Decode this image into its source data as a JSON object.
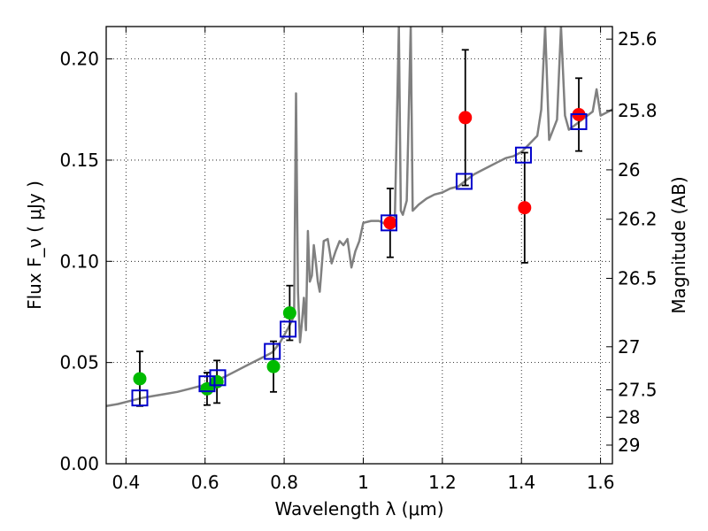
{
  "chart_data": {
    "type": "scatter",
    "xlabel": "Wavelength  λ (μm)",
    "ylabel": "Flux  F_ν  ( μJy )",
    "y2label": "Magnitude (AB)",
    "xlim": [
      0.35,
      1.63
    ],
    "ylim": [
      0.0,
      0.216
    ],
    "grid": true,
    "x_ticks": [
      {
        "value": 0.4,
        "label": "0.4"
      },
      {
        "value": 0.6,
        "label": "0.6"
      },
      {
        "value": 0.8,
        "label": "0.8"
      },
      {
        "value": 1.0,
        "label": "1"
      },
      {
        "value": 1.2,
        "label": "1.2"
      },
      {
        "value": 1.4,
        "label": "1.4"
      },
      {
        "value": 1.6,
        "label": "1.6"
      }
    ],
    "y_ticks": [
      {
        "value": 0.0,
        "label": "0.00"
      },
      {
        "value": 0.05,
        "label": "0.05"
      },
      {
        "value": 0.1,
        "label": "0.10"
      },
      {
        "value": 0.15,
        "label": "0.15"
      },
      {
        "value": 0.2,
        "label": "0.20"
      }
    ],
    "y2_ticks": [
      {
        "label": "25.6",
        "flux": 0.2098
      },
      {
        "label": "25.8",
        "flux": 0.1745
      },
      {
        "label": "26",
        "flux": 0.1452
      },
      {
        "label": "26.2",
        "flux": 0.1208
      },
      {
        "label": "26.5",
        "flux": 0.0916
      },
      {
        "label": "27",
        "flux": 0.0578
      },
      {
        "label": "27.5",
        "flux": 0.0365
      },
      {
        "label": "28",
        "flux": 0.023
      },
      {
        "label": "29",
        "flux": 0.0092
      }
    ],
    "series": [
      {
        "marker": "circle",
        "color": "#00bb00",
        "points": [
          {
            "x": 0.435,
            "y": 0.042,
            "yerr": 0.0135
          },
          {
            "x": 0.605,
            "y": 0.037,
            "yerr": 0.008
          },
          {
            "x": 0.63,
            "y": 0.0405,
            "yerr": 0.0105
          },
          {
            "x": 0.773,
            "y": 0.048,
            "yerr": 0.0125
          },
          {
            "x": 0.814,
            "y": 0.0745,
            "yerr": 0.0135
          }
        ]
      },
      {
        "marker": "circle",
        "color": "#ff0000",
        "points": [
          {
            "x": 1.068,
            "y": 0.119,
            "yerr": 0.017
          },
          {
            "x": 1.258,
            "y": 0.171,
            "yerr": 0.0335
          },
          {
            "x": 1.408,
            "y": 0.1265,
            "yerr": 0.0272
          },
          {
            "x": 1.545,
            "y": 0.1725,
            "yerr": 0.018
          }
        ]
      },
      {
        "marker": "open-square",
        "color": "#0000cc",
        "points": [
          {
            "x": 0.435,
            "y": 0.0325
          },
          {
            "x": 0.605,
            "y": 0.0395
          },
          {
            "x": 0.632,
            "y": 0.0425
          },
          {
            "x": 0.77,
            "y": 0.0555
          },
          {
            "x": 0.81,
            "y": 0.0665
          },
          {
            "x": 1.065,
            "y": 0.119
          },
          {
            "x": 1.255,
            "y": 0.1395
          },
          {
            "x": 1.405,
            "y": 0.1525
          },
          {
            "x": 1.545,
            "y": 0.169
          }
        ]
      },
      {
        "type": "line",
        "color": "#808080",
        "points": [
          [
            0.35,
            0.0285
          ],
          [
            0.38,
            0.0295
          ],
          [
            0.41,
            0.031
          ],
          [
            0.44,
            0.0325
          ],
          [
            0.47,
            0.0335
          ],
          [
            0.5,
            0.0345
          ],
          [
            0.53,
            0.0355
          ],
          [
            0.56,
            0.037
          ],
          [
            0.59,
            0.0385
          ],
          [
            0.62,
            0.0405
          ],
          [
            0.65,
            0.043
          ],
          [
            0.68,
            0.046
          ],
          [
            0.71,
            0.049
          ],
          [
            0.74,
            0.052
          ],
          [
            0.77,
            0.055
          ],
          [
            0.79,
            0.06
          ],
          [
            0.81,
            0.067
          ],
          [
            0.825,
            0.073
          ],
          [
            0.83,
            0.183
          ],
          [
            0.835,
            0.085
          ],
          [
            0.84,
            0.06
          ],
          [
            0.845,
            0.07
          ],
          [
            0.85,
            0.082
          ],
          [
            0.855,
            0.066
          ],
          [
            0.86,
            0.115
          ],
          [
            0.865,
            0.09
          ],
          [
            0.87,
            0.093
          ],
          [
            0.875,
            0.108
          ],
          [
            0.88,
            0.1
          ],
          [
            0.885,
            0.09
          ],
          [
            0.89,
            0.085
          ],
          [
            0.9,
            0.11
          ],
          [
            0.91,
            0.111
          ],
          [
            0.92,
            0.099
          ],
          [
            0.93,
            0.105
          ],
          [
            0.94,
            0.11
          ],
          [
            0.95,
            0.108
          ],
          [
            0.96,
            0.111
          ],
          [
            0.97,
            0.097
          ],
          [
            0.98,
            0.105
          ],
          [
            0.99,
            0.11
          ],
          [
            1.0,
            0.119
          ],
          [
            1.02,
            0.12
          ],
          [
            1.04,
            0.12
          ],
          [
            1.06,
            0.118
          ],
          [
            1.08,
            0.122
          ],
          [
            1.09,
            0.216
          ],
          [
            1.095,
            0.125
          ],
          [
            1.1,
            0.123
          ],
          [
            1.11,
            0.13
          ],
          [
            1.12,
            0.216
          ],
          [
            1.125,
            0.125
          ],
          [
            1.14,
            0.128
          ],
          [
            1.16,
            0.131
          ],
          [
            1.18,
            0.133
          ],
          [
            1.2,
            0.134
          ],
          [
            1.22,
            0.136
          ],
          [
            1.24,
            0.137
          ],
          [
            1.26,
            0.14
          ],
          [
            1.28,
            0.143
          ],
          [
            1.3,
            0.145
          ],
          [
            1.32,
            0.147
          ],
          [
            1.34,
            0.149
          ],
          [
            1.36,
            0.151
          ],
          [
            1.38,
            0.152
          ],
          [
            1.4,
            0.154
          ],
          [
            1.42,
            0.158
          ],
          [
            1.44,
            0.162
          ],
          [
            1.45,
            0.175
          ],
          [
            1.46,
            0.216
          ],
          [
            1.47,
            0.16
          ],
          [
            1.48,
            0.165
          ],
          [
            1.49,
            0.17
          ],
          [
            1.5,
            0.216
          ],
          [
            1.51,
            0.172
          ],
          [
            1.52,
            0.165
          ],
          [
            1.54,
            0.168
          ],
          [
            1.56,
            0.171
          ],
          [
            1.58,
            0.174
          ],
          [
            1.59,
            0.185
          ],
          [
            1.6,
            0.172
          ],
          [
            1.63,
            0.175
          ]
        ]
      }
    ]
  }
}
